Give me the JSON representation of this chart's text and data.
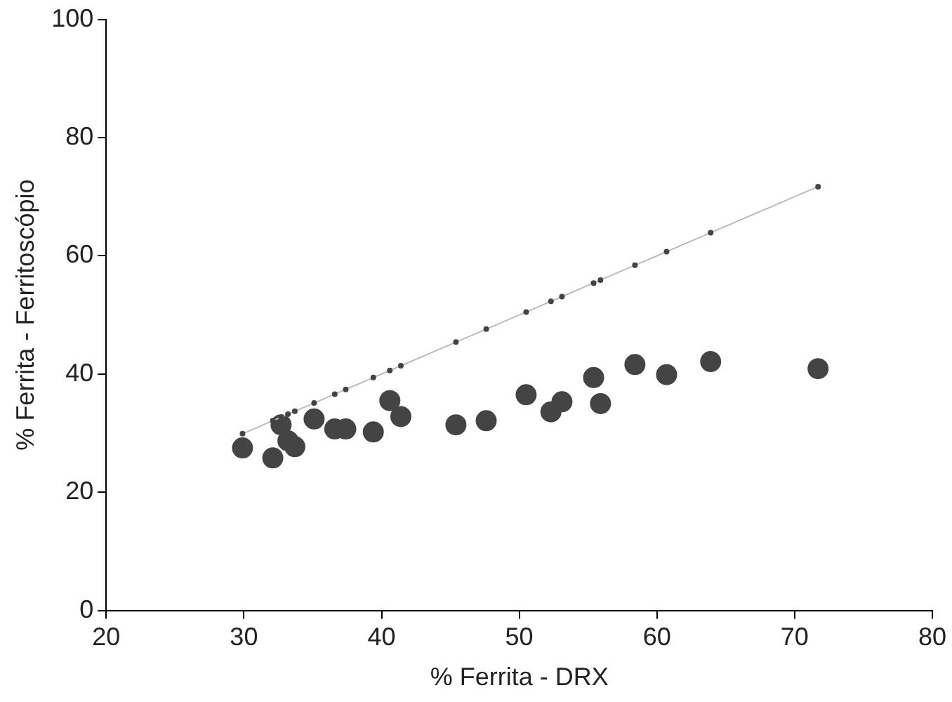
{
  "chart_data": {
    "type": "scatter",
    "xlabel": "% Ferrita - DRX",
    "ylabel": "% Ferrita - Ferritoscópio",
    "xlim": [
      20,
      80
    ],
    "xticks": [
      20,
      30,
      40,
      50,
      60,
      70,
      80
    ],
    "ylim": [
      0,
      100
    ],
    "yticks": [
      0,
      20,
      40,
      60,
      80,
      100
    ],
    "grid": false,
    "legend": false,
    "series": [
      {
        "type": "scatter",
        "color": "#444444",
        "marker": "circle",
        "x": [
          29.9,
          32.1,
          32.7,
          33.2,
          33.7,
          35.1,
          36.6,
          37.4,
          39.4,
          40.6,
          41.4,
          45.4,
          47.6,
          50.5,
          52.3,
          53.1,
          55.4,
          55.9,
          58.4,
          60.7,
          63.9,
          71.7
        ],
        "values": [
          27.5,
          25.8,
          31.4,
          28.7,
          27.7,
          32.4,
          30.7,
          30.7,
          30.2,
          35.5,
          32.8,
          31.4,
          32.1,
          36.5,
          33.6,
          35.3,
          39.4,
          35.0,
          41.6,
          39.9,
          42.1,
          40.9
        ]
      },
      {
        "type": "line",
        "color": "#bbbbbb",
        "marker": "circle",
        "line_style": "solid",
        "x": [
          29.9,
          32.1,
          32.7,
          33.2,
          33.7,
          35.1,
          36.6,
          37.4,
          39.4,
          40.6,
          41.4,
          45.4,
          47.6,
          50.5,
          52.3,
          53.1,
          55.4,
          55.9,
          58.4,
          60.7,
          63.9,
          71.7
        ],
        "values": [
          29.9,
          32.1,
          32.7,
          33.2,
          33.7,
          35.1,
          36.6,
          37.4,
          39.4,
          40.6,
          41.4,
          45.4,
          47.6,
          50.5,
          52.3,
          53.1,
          55.4,
          55.9,
          58.4,
          60.7,
          63.9,
          71.7
        ]
      }
    ]
  }
}
